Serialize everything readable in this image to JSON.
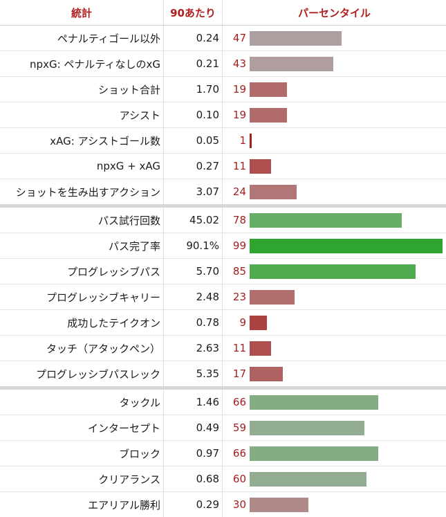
{
  "header": {
    "stat": "統計",
    "per90": "90あたり",
    "percentile": "パーセンタイル"
  },
  "chart_data": {
    "type": "table",
    "groups": [
      {
        "rows": [
          {
            "stat": "ペナルティゴール以外",
            "per90": "0.24",
            "percentile": 47,
            "color": "#ad9fa0"
          },
          {
            "stat": "npxG: ペナルティなしのxG",
            "per90": "0.21",
            "percentile": 43,
            "color": "#b09e9f"
          },
          {
            "stat": "ショット合計",
            "per90": "1.70",
            "percentile": 19,
            "color": "#b26b6b"
          },
          {
            "stat": "アシスト",
            "per90": "0.10",
            "percentile": 19,
            "color": "#b26b6b"
          },
          {
            "stat": "xAG: アシストゴール数",
            "per90": "0.05",
            "percentile": 1,
            "color": "#a62020"
          },
          {
            "stat": "npxG + xAG",
            "per90": "0.27",
            "percentile": 11,
            "color": "#ae4e4e"
          },
          {
            "stat": "ショットを生み出すアクション",
            "per90": "3.07",
            "percentile": 24,
            "color": "#b17777"
          }
        ]
      },
      {
        "rows": [
          {
            "stat": "パス試行回数",
            "per90": "45.02",
            "percentile": 78,
            "color": "#66ad66"
          },
          {
            "stat": "パス完了率",
            "per90": "90.1%",
            "percentile": 99,
            "color": "#2ea52e"
          },
          {
            "stat": "プログレッシブパス",
            "per90": "5.70",
            "percentile": 85,
            "color": "#4fa94f"
          },
          {
            "stat": "プログレッシブキャリー",
            "per90": "2.48",
            "percentile": 23,
            "color": "#b16f6f"
          },
          {
            "stat": "成功したテイクオン",
            "per90": "0.78",
            "percentile": 9,
            "color": "#ab4141"
          },
          {
            "stat": "タッチ（アタックペン）",
            "per90": "2.63",
            "percentile": 11,
            "color": "#ae4e4e"
          },
          {
            "stat": "プログレッシブパスレック",
            "per90": "5.35",
            "percentile": 17,
            "color": "#b06161"
          }
        ]
      },
      {
        "rows": [
          {
            "stat": "タックル",
            "per90": "1.46",
            "percentile": 66,
            "color": "#84ad84"
          },
          {
            "stat": "インターセプト",
            "per90": "0.49",
            "percentile": 59,
            "color": "#92ad92"
          },
          {
            "stat": "ブロック",
            "per90": "0.97",
            "percentile": 66,
            "color": "#84ad84"
          },
          {
            "stat": "クリアランス",
            "per90": "0.68",
            "percentile": 60,
            "color": "#92ad92"
          },
          {
            "stat": "エアリアル勝利",
            "per90": "0.29",
            "percentile": 30,
            "color": "#b08989"
          }
        ]
      }
    ],
    "percentile_range": [
      0,
      100
    ]
  }
}
